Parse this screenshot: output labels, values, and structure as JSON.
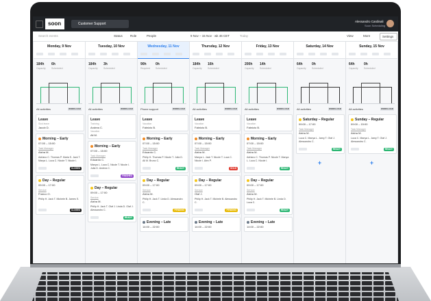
{
  "app": {
    "logo": "soon",
    "team": "Customer Support",
    "user_name": "Alessandro Cardinali",
    "user_org": "Soon Scheduling"
  },
  "toolbar": {
    "search": "Search events",
    "filters": [
      "Status",
      "Role",
      "People"
    ],
    "range": "9 Nov – 15 Nov · wk 46 CET",
    "today": "Today",
    "view": "View",
    "more": "More",
    "settings": "Settings"
  },
  "days": [
    {
      "name": "Monday, 9 Nov",
      "stats": [
        {
          "value": "184h",
          "label": "Capacity"
        },
        {
          "value": "6h",
          "label": "Scheduled"
        }
      ],
      "filter": "All activities",
      "badge": "WORKLOAD",
      "cards": [
        {
          "title": "Leave",
          "entries": [
            {
              "type": "Sick leave",
              "name": "Jacob D."
            }
          ]
        },
        {
          "title": "Morning – Early",
          "icon": "#f08a24",
          "time": "07:00 – 15:00",
          "role": "Task Manager",
          "lead": "Aisha M.",
          "people": "Adriano C. Thomas P. Maria S. Jack T. Marya L. Luca C. Nicole T. Nicole I.",
          "status": "CLOSED",
          "status_color": "#222222"
        },
        {
          "title": "Day – Regular",
          "icon": "#f5c518",
          "time": "09:00 – 17:00",
          "role": "Service",
          "lead": "Franco O.",
          "people": "Philip H. Jack T. Michele B. James S.",
          "status": "CLOSED",
          "status_color": "#222222"
        }
      ]
    },
    {
      "name": "Tuesday, 10 Nov",
      "stats": [
        {
          "value": "184h",
          "label": "Capacity"
        },
        {
          "value": "3h",
          "label": "Scheduled"
        }
      ],
      "filter": "All activities",
      "badge": "WORKLOAD",
      "cards": [
        {
          "title": "Leave",
          "entries": [
            {
              "type": "Training",
              "name": "Andrea C."
            },
            {
              "type": "Vacation",
              "name": "Ali M."
            }
          ]
        },
        {
          "title": "Morning – Early",
          "icon": "#f08a24",
          "time": "07:00 – 15:00",
          "role": "Task Manager",
          "lead": "Eduardo C.",
          "people": "Manya L. Luca C. Nicole T. Nicole I. Julia D. Andrea C.",
          "status": "FINISHED",
          "status_color": "#8e44c9"
        },
        {
          "title": "Day – Regular",
          "icon": "#f5c518",
          "time": "09:00 – 17:00",
          "role": "Service",
          "lead": "Aisha M.",
          "people": "Philip H. Jack T. Olaf J. Linda D. Olaf J. Alessandro C.",
          "status": "READY",
          "status_color": "#2bb673"
        }
      ]
    },
    {
      "name": "Wednesday, 11 Nov",
      "active": true,
      "stats": [
        {
          "value": "90h",
          "label": "Required"
        },
        {
          "value": "0h",
          "label": "Scheduled"
        }
      ],
      "filter": "Phone support",
      "badge": "WORKLOAD",
      "cards": [
        {
          "title": "Leave",
          "entries": [
            {
              "type": "Vacation",
              "name": "Fabrizio B."
            }
          ]
        },
        {
          "title": "Morning – Early",
          "icon": "#f08a24",
          "time": "07:00 – 15:00",
          "role": "Task Manager",
          "lead": "Eduardo C.",
          "people": "Philip H. Thomas P. Nicole T. Julia D. Ali M. Bruno C.",
          "status": "READY",
          "status_color": "#2bb673"
        },
        {
          "title": "Day – Regular",
          "icon": "#f5c518",
          "time": "09:00 – 17:00",
          "role": "Service",
          "lead": "Aisha M.",
          "people": "Philip H. Jack T. Linda D. Alessandro C.",
          "status": "PENDING",
          "status_color": "#e6b800"
        },
        {
          "title": "Evening – Late",
          "icon": "#6c7a89",
          "time": "14:00 – 22:00"
        }
      ]
    },
    {
      "name": "Thursday, 12 Nov",
      "stats": [
        {
          "value": "184h",
          "label": "Capacity"
        },
        {
          "value": "16h",
          "label": "Scheduled"
        }
      ],
      "filter": "All activities",
      "badge": "WORKLOAD",
      "cards": [
        {
          "title": "Leave",
          "entries": [
            {
              "type": "Vacation",
              "name": "Fabrizio B."
            }
          ]
        },
        {
          "title": "Morning – Early",
          "icon": "#f08a24",
          "time": "07:00 – 15:00",
          "role": "Task Manager",
          "lead": "Aisha M.",
          "people": "Manya L. Jack T. Nicole T. Luca C. Nicole I. Alex P.",
          "status": "SOLD",
          "status_color": "#e03c31"
        },
        {
          "title": "Day – Regular",
          "icon": "#f5c518",
          "time": "09:00 – 17:00",
          "role": "Service",
          "lead": "Olaf J.",
          "people": "Philip H. Jack T. Michele B. Alessandro C.",
          "status": "PENDING",
          "status_color": "#e6b800"
        },
        {
          "title": "Evening – Late",
          "icon": "#6c7a89",
          "time": "14:00 – 22:00"
        }
      ]
    },
    {
      "name": "Friday, 13 Nov",
      "stats": [
        {
          "value": "200h",
          "label": "Capacity"
        },
        {
          "value": "14h",
          "label": "Scheduled"
        }
      ],
      "filter": "All activities",
      "badge": "WORKLOAD",
      "cards": [
        {
          "title": "Leave",
          "entries": [
            {
              "type": "Vacation",
              "name": "Fabrizio B."
            }
          ]
        },
        {
          "title": "Morning – Early",
          "icon": "#f08a24",
          "time": "07:00 – 15:00",
          "role": "Task Manager",
          "lead": "Aisha M.",
          "people": "Adriano C. Thomas P. Nicole T. Manya L. Luca C. Nicole I.",
          "status": "READY",
          "status_color": "#2bb673"
        },
        {
          "title": "Day – Regular",
          "icon": "#f5c518",
          "time": "09:00 – 17:00",
          "role": "Service",
          "lead": "Aisha M.",
          "people": "Philip H. Jack T. Michele B. Linda D. Luca C.",
          "status": "READY",
          "status_color": "#2bb673"
        },
        {
          "title": "Evening – Late",
          "icon": "#6c7a89",
          "time": "14:00 – 22:00"
        }
      ]
    },
    {
      "name": "Saturday, 14 Nov",
      "stats": [
        {
          "value": "64h",
          "label": "Capacity"
        },
        {
          "value": "0h",
          "label": "Scheduled"
        }
      ],
      "filter": "All activities",
      "badge": "WORKLOAD",
      "add": "+",
      "cards": [
        {
          "title": "Saturday – Regular",
          "icon": "#f5c518",
          "time": "09:00 – 17:00",
          "role": "Task Manager",
          "lead": "Aisha M.",
          "people": "Luca C. Manya L. Jamy T. Olaf J. Alessandro C.",
          "status": "READY",
          "status_color": "#2bb673"
        }
      ]
    },
    {
      "name": "Sunday, 15 Nov",
      "stats": [
        {
          "value": "64h",
          "label": "Capacity"
        },
        {
          "value": "0h",
          "label": "Scheduled"
        }
      ],
      "filter": "All activities",
      "badge": "WORKLOAD",
      "add": "+",
      "cards": [
        {
          "title": "Sunday – Regular",
          "icon": "#f5c518",
          "time": "09:00 – 15:00",
          "role": "Task Manager",
          "lead": "Aisha M.",
          "people": "Luca C. Manya L. Jamy T. Olaf J. Alessandro C.",
          "status": "READY",
          "status_color": "#2bb673"
        }
      ]
    }
  ]
}
